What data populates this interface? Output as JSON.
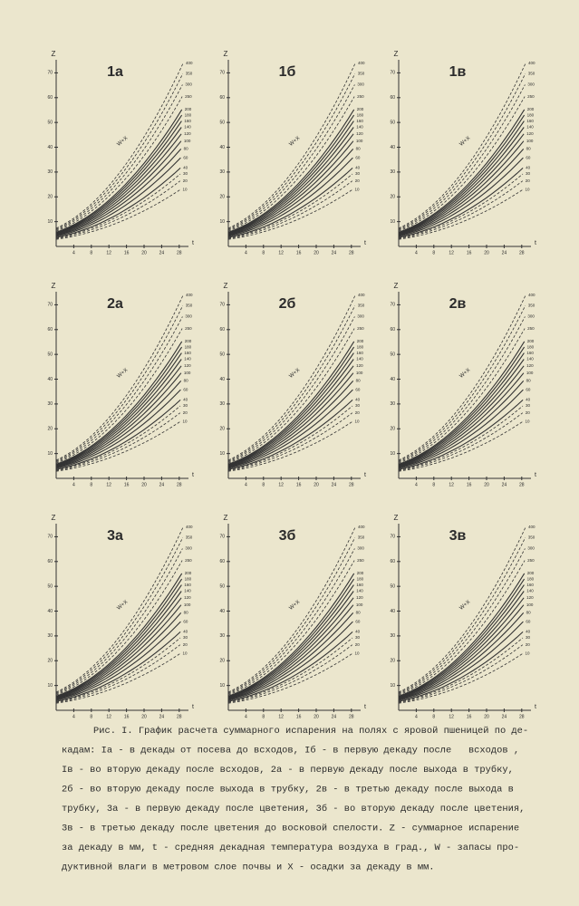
{
  "panels": [
    {
      "title": "1а",
      "ylabel": "Z",
      "xlabel": "t",
      "annotation": "W+X",
      "yticks": [
        10,
        20,
        30,
        40,
        50,
        60,
        70
      ],
      "xticks": [
        4,
        8,
        12,
        16,
        20,
        24,
        28
      ],
      "curves": [
        400,
        350,
        300,
        250,
        200,
        180,
        160,
        140,
        120,
        100,
        80,
        60,
        40,
        30,
        20,
        10
      ]
    },
    {
      "title": "1б",
      "ylabel": "Z",
      "xlabel": "t",
      "annotation": "W+X",
      "yticks": [
        10,
        20,
        30,
        40,
        50,
        60,
        70
      ],
      "xticks": [
        4,
        8,
        12,
        16,
        20,
        24,
        28
      ],
      "curves": [
        400,
        350,
        300,
        250,
        200,
        180,
        160,
        140,
        120,
        100,
        80,
        60,
        40,
        30,
        20,
        10
      ]
    },
    {
      "title": "1в",
      "ylabel": "Z",
      "xlabel": "t",
      "annotation": "W+X",
      "yticks": [
        10,
        20,
        30,
        40,
        50,
        60,
        70
      ],
      "xticks": [
        4,
        8,
        12,
        16,
        20,
        24,
        28
      ],
      "curves": [
        400,
        350,
        300,
        250,
        200,
        180,
        160,
        140,
        120,
        100,
        80,
        60,
        40,
        30,
        20,
        10
      ]
    },
    {
      "title": "2а",
      "ylabel": "Z",
      "xlabel": "t",
      "annotation": "W+X",
      "yticks": [
        10,
        20,
        30,
        40,
        50,
        60,
        70
      ],
      "xticks": [
        4,
        8,
        12,
        16,
        20,
        24,
        28
      ],
      "curves": [
        400,
        350,
        300,
        250,
        200,
        180,
        160,
        140,
        120,
        100,
        80,
        60,
        40,
        30,
        20,
        10
      ]
    },
    {
      "title": "2б",
      "ylabel": "Z",
      "xlabel": "t",
      "annotation": "W+X",
      "yticks": [
        10,
        20,
        30,
        40,
        50,
        60,
        70
      ],
      "xticks": [
        4,
        8,
        12,
        16,
        20,
        24,
        28
      ],
      "curves": [
        400,
        350,
        300,
        250,
        200,
        180,
        160,
        140,
        120,
        100,
        80,
        60,
        40,
        30,
        20,
        10
      ]
    },
    {
      "title": "2в",
      "ylabel": "Z",
      "xlabel": "t",
      "annotation": "W+X",
      "yticks": [
        10,
        20,
        30,
        40,
        50,
        60,
        70
      ],
      "xticks": [
        4,
        8,
        12,
        16,
        20,
        24,
        28
      ],
      "curves": [
        400,
        350,
        300,
        250,
        200,
        180,
        160,
        140,
        120,
        100,
        80,
        60,
        40,
        30,
        20,
        10
      ]
    },
    {
      "title": "3а",
      "ylabel": "Z",
      "xlabel": "t",
      "annotation": "W+X",
      "yticks": [
        10,
        20,
        30,
        40,
        50,
        60,
        70
      ],
      "xticks": [
        4,
        8,
        12,
        16,
        20,
        24,
        28
      ],
      "curves": [
        400,
        350,
        300,
        250,
        200,
        180,
        160,
        140,
        120,
        100,
        80,
        60,
        40,
        30,
        20,
        10
      ]
    },
    {
      "title": "3б",
      "ylabel": "Z",
      "xlabel": "t",
      "annotation": "W+X",
      "yticks": [
        10,
        20,
        30,
        40,
        50,
        60,
        70
      ],
      "xticks": [
        4,
        8,
        12,
        16,
        20,
        24,
        28
      ],
      "curves": [
        400,
        350,
        300,
        250,
        200,
        180,
        160,
        140,
        120,
        100,
        80,
        60,
        40,
        30,
        20,
        10
      ]
    },
    {
      "title": "3в",
      "ylabel": "Z",
      "xlabel": "t",
      "annotation": "W+X",
      "yticks": [
        10,
        20,
        30,
        40,
        50,
        60,
        70
      ],
      "xticks": [
        4,
        8,
        12,
        16,
        20,
        24,
        28
      ],
      "curves": [
        400,
        350,
        300,
        250,
        200,
        180,
        160,
        140,
        120,
        100,
        80,
        60,
        40,
        30,
        20,
        10
      ]
    }
  ],
  "caption": [
    "Рис. I. График расчета суммарного испарения на полях с яровой пшеницей по де-",
    "кадам: Iа - в декады от посева до всходов, Iб - в первую декаду после   всходов ,",
    "Iв - во вторую декаду после всходов, 2а - в первую декаду после выхода в трубку,",
    "2б - во вторую декаду после выхода в трубку, 2в - в третью декаду после выхода в",
    "трубку, 3а - в первую декаду после цветения, 3б - во вторую декаду после цветения,",
    "3в - в третью декаду после цветения до восковой спелости. Z - суммарное испарение",
    "за декаду в мм, t - средняя декадная температура воздуха в град., W - запасы про-",
    "дуктивной влаги в метровом слое почвы и X - осадки за декаду в мм."
  ]
}
